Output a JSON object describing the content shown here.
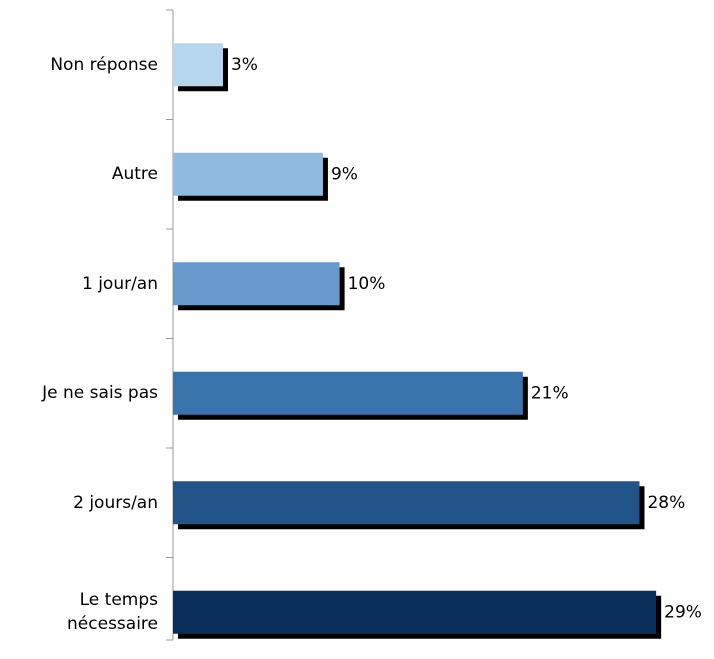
{
  "chart_data": {
    "type": "bar",
    "orientation": "horizontal",
    "categories": [
      "Non réponse",
      "Autre",
      "1 jour/an",
      "Je ne sais pas",
      "2 jours/an",
      "Le temps nécessaire"
    ],
    "values": [
      3,
      9,
      10,
      21,
      28,
      29
    ],
    "value_labels": [
      "3%",
      "9%",
      "10%",
      "21%",
      "28%",
      "29%"
    ],
    "colors": [
      "#b6d5ef",
      "#8fbbe1",
      "#6699cc",
      "#3a74ad",
      "#215489",
      "#0b2f5c"
    ]
  }
}
